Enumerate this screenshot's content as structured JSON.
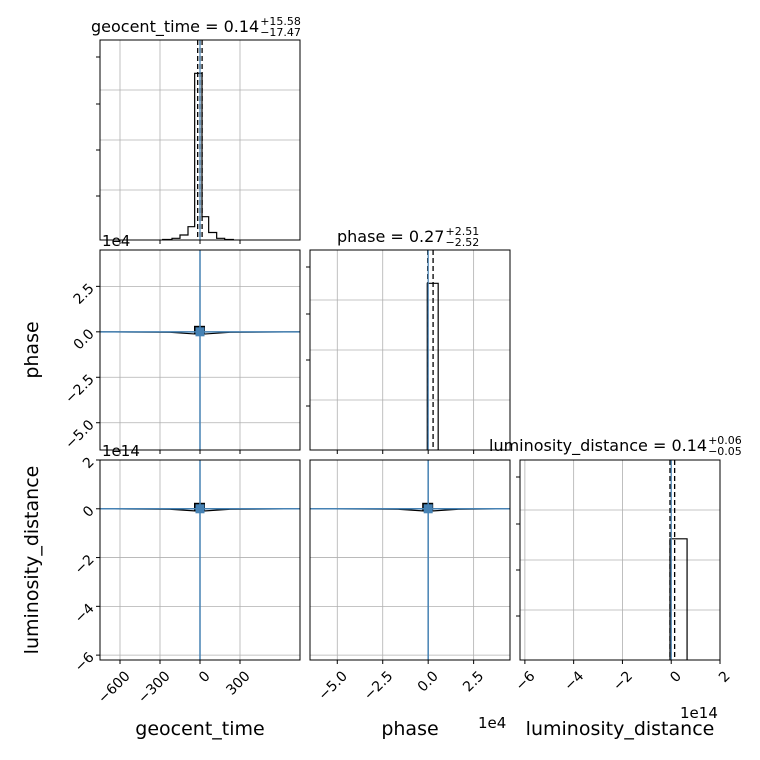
{
  "chart_data": {
    "type": "corner",
    "parameters": [
      "geocent_time",
      "phase",
      "luminosity_distance"
    ],
    "titles": [
      {
        "param": "geocent_time",
        "prefix": "geocent_time = ",
        "median": "0.14",
        "upper": "+15.58",
        "lower": "−17.47"
      },
      {
        "param": "phase",
        "prefix": "phase = ",
        "median": "0.27",
        "upper": "+2.51",
        "lower": "−2.52"
      },
      {
        "param": "luminosity_distance",
        "prefix": "luminosity_distance = ",
        "median": "0.14",
        "upper": "+0.06",
        "lower": "−0.05"
      }
    ],
    "axes": {
      "geocent_time": {
        "range": [
          -750,
          750
        ],
        "ticks": [
          -600,
          -300,
          0,
          300
        ],
        "tick_labels": [
          "−600",
          "−300",
          "0",
          "300"
        ],
        "offset": ""
      },
      "phase": {
        "range": [
          -6.5,
          4.5
        ],
        "ticks": [
          -5.0,
          -2.5,
          0.0,
          2.5
        ],
        "tick_labels": [
          "−5.0",
          "−2.5",
          "0.0",
          "2.5"
        ],
        "offset": "1e4"
      },
      "luminosity_distance": {
        "range": [
          -6.2,
          2.0
        ],
        "ticks": [
          -6,
          -4,
          -2,
          0,
          2
        ],
        "tick_labels": [
          "−6",
          "−4",
          "−2",
          "0",
          "2"
        ],
        "offset": "1e14"
      }
    },
    "histograms": [
      {
        "param": "geocent_time",
        "bins": [
          [
            -280,
            -210,
            0.003
          ],
          [
            -210,
            -150,
            0.01
          ],
          [
            -150,
            -90,
            0.03
          ],
          [
            -90,
            -40,
            0.08
          ],
          [
            -40,
            15,
            1.0
          ],
          [
            15,
            65,
            0.14
          ],
          [
            65,
            125,
            0.045
          ],
          [
            125,
            185,
            0.01
          ],
          [
            185,
            250,
            0.003
          ]
        ],
        "ymax": 1.2,
        "quantile_lines": [
          -17.33,
          0.14,
          15.72
        ]
      },
      {
        "param": "phase",
        "bins": [
          [
            -0.05,
            0.55,
            1.0
          ]
        ],
        "ymax": 1.2,
        "quantile_lines": [
          -0.025,
          0.27
        ]
      },
      {
        "param": "luminosity_distance",
        "bins": [
          [
            -0.05,
            0.65,
            1.0
          ]
        ],
        "ymax": 1.65,
        "quantile_lines": [
          -0.05,
          0.14
        ]
      }
    ],
    "scatter_panels": [
      {
        "x": "geocent_time",
        "y": "phase",
        "truth": [
          0,
          0
        ],
        "density_center": [
          0,
          0
        ]
      },
      {
        "x": "geocent_time",
        "y": "luminosity_distance",
        "truth": [
          0,
          0
        ],
        "density_center": [
          0,
          0
        ]
      },
      {
        "x": "phase",
        "y": "luminosity_distance",
        "truth": [
          0,
          0
        ],
        "density_center": [
          0,
          0
        ]
      }
    ],
    "truth_color": "#4682b4",
    "hist_color": "#000000",
    "grid": true,
    "xlabel_bottom": [
      "geocent_time",
      "phase",
      "luminosity_distance"
    ],
    "ylabel_left": [
      "phase",
      "luminosity_distance"
    ]
  }
}
